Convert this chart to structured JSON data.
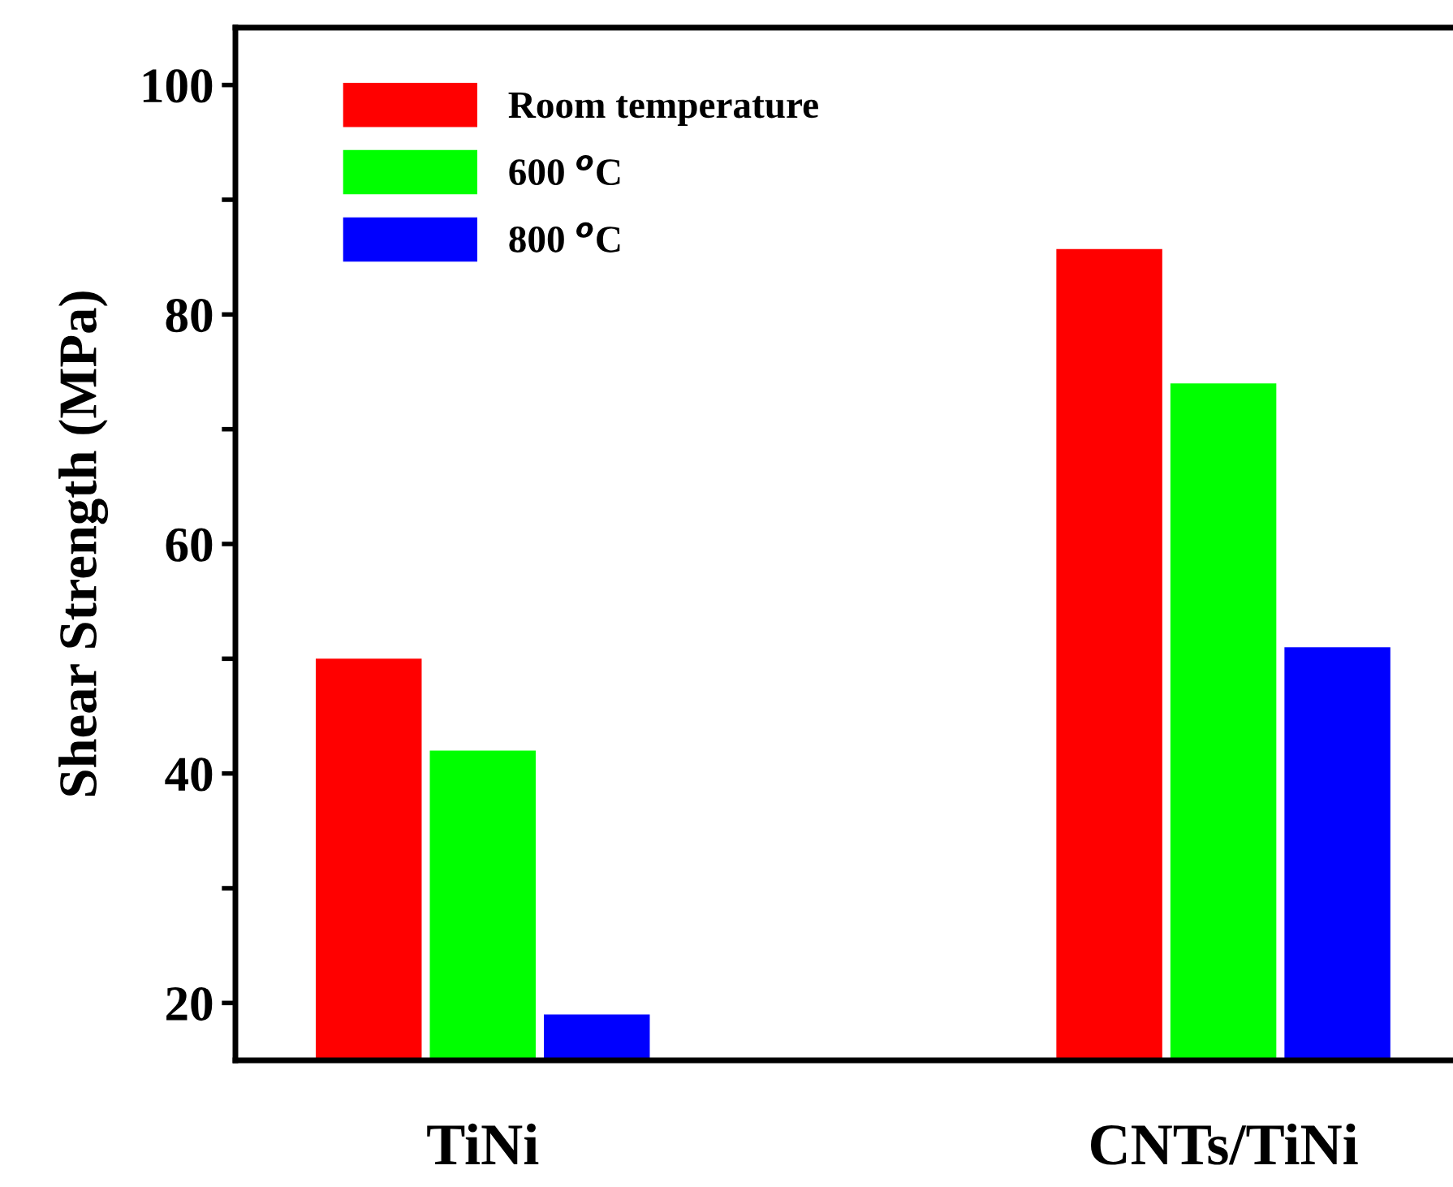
{
  "chart_data": {
    "type": "bar",
    "ylabel": "Shear Strength (MPa)",
    "categories": [
      "TiNi",
      "CNTs/TiNi"
    ],
    "series": [
      {
        "name": "Room temperature",
        "color": "#ff0000",
        "values": [
          50,
          85.7
        ]
      },
      {
        "name": "600 $^{o}$C",
        "color": "#00ff00",
        "values": [
          42,
          74
        ]
      },
      {
        "name": "800 $^{o}$C",
        "color": "#0000ff",
        "values": [
          19,
          51
        ]
      }
    ],
    "ylim": [
      15,
      105
    ],
    "yticks": [
      20,
      {
        "value": 30,
        "label": null
      },
      40,
      {
        "value": 50,
        "label": null
      },
      60,
      {
        "value": 70,
        "label": null
      },
      80,
      {
        "value": 90,
        "label": null
      },
      100
    ],
    "grid": false,
    "legend": "top left"
  }
}
